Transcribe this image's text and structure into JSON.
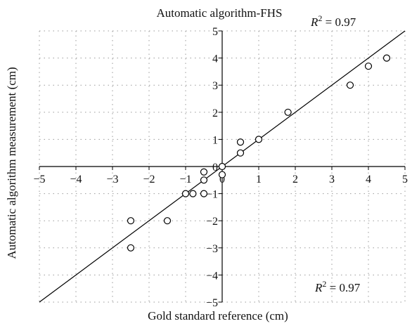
{
  "chart_data": {
    "type": "scatter",
    "title": "Automatic algorithm-FHS",
    "xlabel": "Gold standard reference (cm)",
    "ylabel": "Automatic algorithm measurement (cm)",
    "xlim": [
      -5,
      5
    ],
    "ylim": [
      -5,
      5
    ],
    "xticks": [
      -5,
      -4,
      -3,
      -2,
      -1,
      0,
      1,
      2,
      3,
      4,
      5
    ],
    "yticks": [
      -5,
      -4,
      -3,
      -2,
      -1,
      0,
      1,
      2,
      3,
      4,
      5
    ],
    "grid": true,
    "grid_style": "dotted",
    "annotations": [
      {
        "text": "R",
        "sup": "2",
        "rest": " = 0.97",
        "location": "top-right"
      },
      {
        "text": "R",
        "sup": "2",
        "rest": " = 0.97",
        "location": "bottom-right"
      }
    ],
    "points": [
      {
        "x": -2.5,
        "y": -3.0
      },
      {
        "x": -2.5,
        "y": -2.0
      },
      {
        "x": -1.5,
        "y": -2.0
      },
      {
        "x": -1.0,
        "y": -1.0
      },
      {
        "x": -0.8,
        "y": -1.0
      },
      {
        "x": -0.5,
        "y": -1.0
      },
      {
        "x": -0.5,
        "y": -0.5
      },
      {
        "x": -0.5,
        "y": -0.2
      },
      {
        "x": 0.0,
        "y": 0.0
      },
      {
        "x": 0.0,
        "y": -0.3
      },
      {
        "x": 0.5,
        "y": 0.5
      },
      {
        "x": 0.5,
        "y": 0.9
      },
      {
        "x": 1.0,
        "y": 1.0
      },
      {
        "x": 1.8,
        "y": 2.0
      },
      {
        "x": 3.5,
        "y": 3.0
      },
      {
        "x": 4.0,
        "y": 3.7
      },
      {
        "x": 4.5,
        "y": 4.0
      }
    ],
    "fit_line": {
      "slope": 1.0,
      "intercept": 0.0,
      "x_range": [
        -5,
        5
      ]
    },
    "marker": "open-circle",
    "colors": {
      "marker_edge": "#000000",
      "marker_fill": "#ffffff",
      "line": "#000000",
      "grid": "#9a9a9a"
    }
  }
}
